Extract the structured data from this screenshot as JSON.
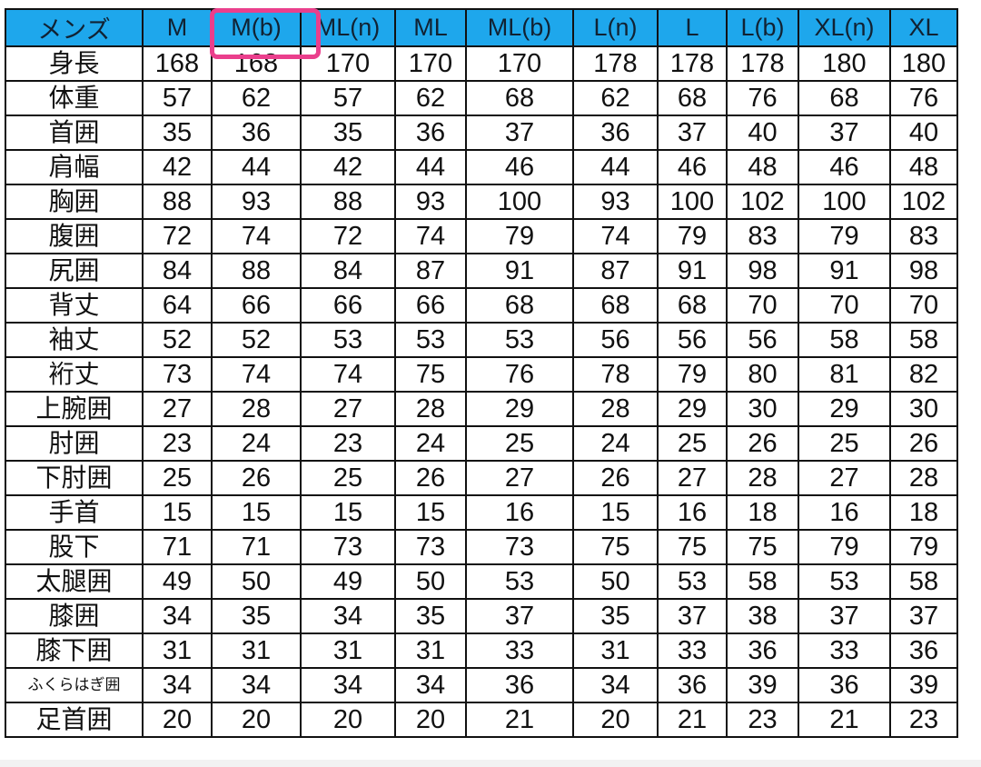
{
  "table": {
    "corner_label": "メンズ",
    "highlighted_column": "M(b)",
    "colors": {
      "header_bg": "#1ea7ec",
      "highlight": "#ea3f8c",
      "border": "#111111"
    },
    "columns": [
      "M",
      "M(b)",
      "ML(n)",
      "ML",
      "ML(b)",
      "L(n)",
      "L",
      "L(b)",
      "XL(n)",
      "XL"
    ],
    "rows": [
      {
        "label": "身長",
        "values": [
          "168",
          "168",
          "170",
          "170",
          "170",
          "178",
          "178",
          "178",
          "180",
          "180"
        ]
      },
      {
        "label": "体重",
        "values": [
          "57",
          "62",
          "57",
          "62",
          "68",
          "62",
          "68",
          "76",
          "68",
          "76"
        ]
      },
      {
        "label": "首囲",
        "values": [
          "35",
          "36",
          "35",
          "36",
          "37",
          "36",
          "37",
          "40",
          "37",
          "40"
        ]
      },
      {
        "label": "肩幅",
        "values": [
          "42",
          "44",
          "42",
          "44",
          "46",
          "44",
          "46",
          "48",
          "46",
          "48"
        ]
      },
      {
        "label": "胸囲",
        "values": [
          "88",
          "93",
          "88",
          "93",
          "100",
          "93",
          "100",
          "102",
          "100",
          "102"
        ]
      },
      {
        "label": "腹囲",
        "values": [
          "72",
          "74",
          "72",
          "74",
          "79",
          "74",
          "79",
          "83",
          "79",
          "83"
        ]
      },
      {
        "label": "尻囲",
        "values": [
          "84",
          "88",
          "84",
          "87",
          "91",
          "87",
          "91",
          "98",
          "91",
          "98"
        ]
      },
      {
        "label": "背丈",
        "values": [
          "64",
          "66",
          "66",
          "66",
          "68",
          "68",
          "68",
          "70",
          "70",
          "70"
        ]
      },
      {
        "label": "袖丈",
        "values": [
          "52",
          "52",
          "53",
          "53",
          "53",
          "56",
          "56",
          "56",
          "58",
          "58"
        ]
      },
      {
        "label": "裄丈",
        "values": [
          "73",
          "74",
          "74",
          "75",
          "76",
          "78",
          "79",
          "80",
          "81",
          "82"
        ]
      },
      {
        "label": "上腕囲",
        "values": [
          "27",
          "28",
          "27",
          "28",
          "29",
          "28",
          "29",
          "30",
          "29",
          "30"
        ]
      },
      {
        "label": "肘囲",
        "values": [
          "23",
          "24",
          "23",
          "24",
          "25",
          "24",
          "25",
          "26",
          "25",
          "26"
        ]
      },
      {
        "label": "下肘囲",
        "values": [
          "25",
          "26",
          "25",
          "26",
          "27",
          "26",
          "27",
          "28",
          "27",
          "28"
        ]
      },
      {
        "label": "手首",
        "values": [
          "15",
          "15",
          "15",
          "15",
          "16",
          "15",
          "16",
          "18",
          "16",
          "18"
        ]
      },
      {
        "label": "股下",
        "values": [
          "71",
          "71",
          "73",
          "73",
          "73",
          "75",
          "75",
          "75",
          "79",
          "79"
        ]
      },
      {
        "label": "太腿囲",
        "values": [
          "49",
          "50",
          "49",
          "50",
          "53",
          "50",
          "53",
          "58",
          "53",
          "58"
        ]
      },
      {
        "label": "膝囲",
        "values": [
          "34",
          "35",
          "34",
          "35",
          "37",
          "35",
          "37",
          "38",
          "37",
          "37"
        ]
      },
      {
        "label": "膝下囲",
        "values": [
          "31",
          "31",
          "31",
          "31",
          "33",
          "31",
          "33",
          "36",
          "33",
          "36"
        ]
      },
      {
        "label": "ふくらはぎ囲",
        "values": [
          "34",
          "34",
          "34",
          "34",
          "36",
          "34",
          "36",
          "39",
          "36",
          "39"
        ]
      },
      {
        "label": "足首囲",
        "values": [
          "20",
          "20",
          "20",
          "20",
          "21",
          "20",
          "21",
          "23",
          "21",
          "23"
        ]
      }
    ]
  }
}
